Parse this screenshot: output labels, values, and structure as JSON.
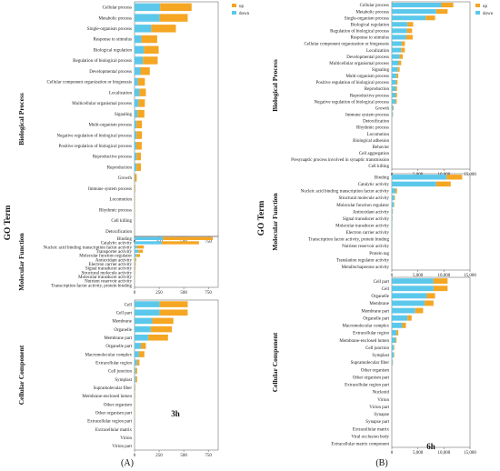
{
  "colors": {
    "up": "#F5A623",
    "down": "#5BC8EB"
  },
  "legend": [
    "up",
    "down"
  ],
  "y_title": "GO Term",
  "chart_data": [
    {
      "type": "bar",
      "stacked": true,
      "orientation": "horizontal",
      "title": "3h",
      "panel_label": "(A)",
      "xlim": [
        0,
        850
      ],
      "xticks": [
        "0",
        "250",
        "500",
        "750"
      ],
      "sections": [
        {
          "name": "Biological Process",
          "categories": [
            "Cellular process",
            "Metabolic process",
            "Single-organism process",
            "Response to stimulus",
            "Biological regulation",
            "Regulation of biological process",
            "Developmental process",
            "Cellular component organization or biogenesis",
            "Localization",
            "Multicellular organismal process",
            "Signaling",
            "Multi-organism process",
            "Negative regulation of biological process",
            "Positive regulation of biological process",
            "Reproductive process",
            "Reproduction",
            "Growth",
            "Immune system process",
            "Locomotion",
            "Rhythmic process",
            "Cell killing",
            "Detoxification"
          ],
          "series": [
            {
              "name": "down",
              "values": [
                260,
                255,
                170,
                70,
                95,
                85,
                60,
                35,
                50,
                40,
                30,
                20,
                20,
                18,
                20,
                20,
                4,
                3,
                2,
                1,
                1,
                1
              ]
            },
            {
              "name": "up",
              "values": [
                320,
                285,
                250,
                160,
                150,
                150,
                95,
                70,
                65,
                65,
                70,
                55,
                55,
                55,
                45,
                45,
                18,
                5,
                3,
                2,
                1,
                1
              ]
            }
          ]
        },
        {
          "name": "Molecular Function",
          "categories": [
            "Binding",
            "Catalytic activity",
            "Nucleic acid binding transcription factor activity",
            "Transporter activity",
            "Molecular function regulator",
            "Antioxidant activity",
            "Electron carrier activity",
            "Signal transducer activity",
            "Structural molecule activity",
            "Molecular transducer activity",
            "Nutrient reservoir activity",
            "Transcription factor activity, protein binding"
          ],
          "series": [
            {
              "name": "down",
              "values": [
                290,
                275,
                25,
                40,
                20,
                6,
                5,
                4,
                3,
                2,
                1,
                1
              ]
            },
            {
              "name": "up",
              "values": [
                505,
                380,
                70,
                45,
                35,
                12,
                8,
                6,
                4,
                3,
                1,
                1
              ]
            }
          ]
        },
        {
          "name": "Cellular Component",
          "categories": [
            "Cell",
            "Cell part",
            "Membrane",
            "Organelle",
            "Membrane part",
            "Organelle part",
            "Macromolecular complex",
            "Extracellular region",
            "Cell junction",
            "Symplast",
            "Supramolecular fiber",
            "Membrane-enclosed lumen",
            "Other organism",
            "Other organism part",
            "Extracellular region part",
            "Extracellular matrix",
            "Virion",
            "Virion part"
          ],
          "series": [
            {
              "name": "down",
              "values": [
                255,
                255,
                180,
                165,
                140,
                65,
                45,
                25,
                12,
                12,
                4,
                3,
                2,
                2,
                1,
                1,
                1,
                1
              ]
            },
            {
              "name": "up",
              "values": [
                285,
                285,
                215,
                215,
                200,
                50,
                55,
                25,
                15,
                15,
                4,
                3,
                2,
                2,
                1,
                1,
                1,
                1
              ]
            }
          ]
        }
      ]
    },
    {
      "type": "bar",
      "stacked": true,
      "orientation": "horizontal",
      "title": "6h",
      "panel_label": "(B)",
      "xlim": [
        0,
        15000
      ],
      "xticks": [
        "0",
        "5,000",
        "10,000",
        "15,000"
      ],
      "sections": [
        {
          "name": "Biological Process",
          "categories": [
            "Cellular process",
            "Metabolic process",
            "Single-organism process",
            "Biological regulation",
            "Regulation of biological process",
            "Response to stimulus",
            "Cellular component organization or biogenesis",
            "Localization",
            "Developmental process",
            "Multicellular organismal process",
            "Signaling",
            "Multi-organism process",
            "Positive regulation of biological process",
            "Reproduction",
            "Reproductive process",
            "Negative regulation of biological process",
            "Growth",
            "Immune system process",
            "Detoxification",
            "Rhythmic process",
            "Locomotion",
            "Biological adhesion",
            "Behavior",
            "Cell aggregation",
            "Presynaptic process involved in synaptic transmission",
            "Cell killing"
          ],
          "series": [
            {
              "name": "down",
              "values": [
                9500,
                8500,
                6500,
                3000,
                2900,
                2700,
                1900,
                1800,
                1500,
                1300,
                1100,
                900,
                800,
                700,
                700,
                700,
                250,
                150,
                60,
                40,
                30,
                20,
                10,
                10,
                5,
                5
              ]
            },
            {
              "name": "up",
              "values": [
                2300,
                2200,
                1800,
                1100,
                1000,
                1300,
                600,
                700,
                600,
                500,
                400,
                350,
                300,
                300,
                300,
                250,
                100,
                80,
                30,
                20,
                20,
                10,
                8,
                6,
                4,
                3
              ]
            }
          ]
        },
        {
          "name": "Molecular Function",
          "categories": [
            "Binding",
            "Catalytic activity",
            "Nucleic acid binding transcription factor activity",
            "Structural molecule activity",
            "Molecular function regulator",
            "Antioxidant activity",
            "Signal transducer activity",
            "Molecular transducer activity",
            "Electron carrier activity",
            "Transcription factor activity, protein binding",
            "Nutrient reservoir activity",
            "Protein tag",
            "Translation regulator activity",
            "Metallochaperone activity"
          ],
          "series": [
            {
              "name": "down",
              "values": [
                10500,
                8500,
                700,
                450,
                350,
                150,
                100,
                80,
                60,
                40,
                20,
                10,
                10,
                5
              ]
            },
            {
              "name": "up",
              "values": [
                3000,
                2800,
                300,
                150,
                100,
                50,
                40,
                30,
                20,
                15,
                10,
                5,
                5,
                3
              ]
            }
          ]
        },
        {
          "name": "Cellular Component",
          "categories": [
            "Cell part",
            "Cell",
            "Organelle",
            "Membrane",
            "Membrane part",
            "Organelle part",
            "Macromolecular complex",
            "Extracellular region",
            "Membrane-enclosed lumen",
            "Cell junction",
            "Symplast",
            "Supramolecular fiber",
            "Other organism",
            "Other organism part",
            "Extracellular region part",
            "Nucleoid",
            "Virion",
            "Virion part",
            "Synapse",
            "Synapse part",
            "Extracellular matrix",
            "Viral occlusion body",
            "Extracellular matrix component"
          ],
          "series": [
            {
              "name": "down",
              "values": [
                8000,
                8000,
                6700,
                6300,
                4500,
                3000,
                2000,
                900,
                700,
                350,
                350,
                150,
                60,
                50,
                40,
                20,
                10,
                10,
                8,
                6,
                5,
                3,
                2
              ]
            },
            {
              "name": "up",
              "values": [
                2700,
                2700,
                1600,
                1700,
                1500,
                800,
                700,
                350,
                200,
                100,
                100,
                50,
                20,
                20,
                15,
                8,
                5,
                5,
                4,
                3,
                2,
                2,
                1
              ]
            }
          ]
        }
      ]
    }
  ]
}
